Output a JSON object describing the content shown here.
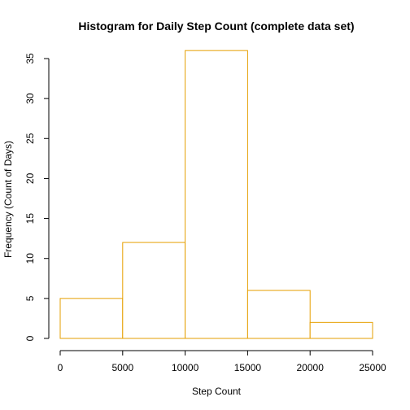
{
  "chart_data": {
    "type": "bar",
    "title": "Histogram for Daily Step Count (complete data set)",
    "xlabel": "Step Count",
    "ylabel": "Frequency (Count of Days)",
    "bins": [
      {
        "start": 0,
        "end": 5000,
        "count": 5
      },
      {
        "start": 5000,
        "end": 10000,
        "count": 12
      },
      {
        "start": 10000,
        "end": 15000,
        "count": 36
      },
      {
        "start": 15000,
        "end": 20000,
        "count": 6
      },
      {
        "start": 20000,
        "end": 25000,
        "count": 2
      }
    ],
    "xlim": [
      0,
      25000
    ],
    "ylim": [
      0,
      35
    ],
    "x_ticks": [
      0,
      5000,
      10000,
      15000,
      20000,
      25000
    ],
    "y_ticks": [
      0,
      5,
      10,
      15,
      20,
      25,
      30,
      35
    ],
    "grid": false,
    "colors": {
      "bar_border": "#E69F00",
      "bar_fill": "#FFFFFF"
    }
  }
}
